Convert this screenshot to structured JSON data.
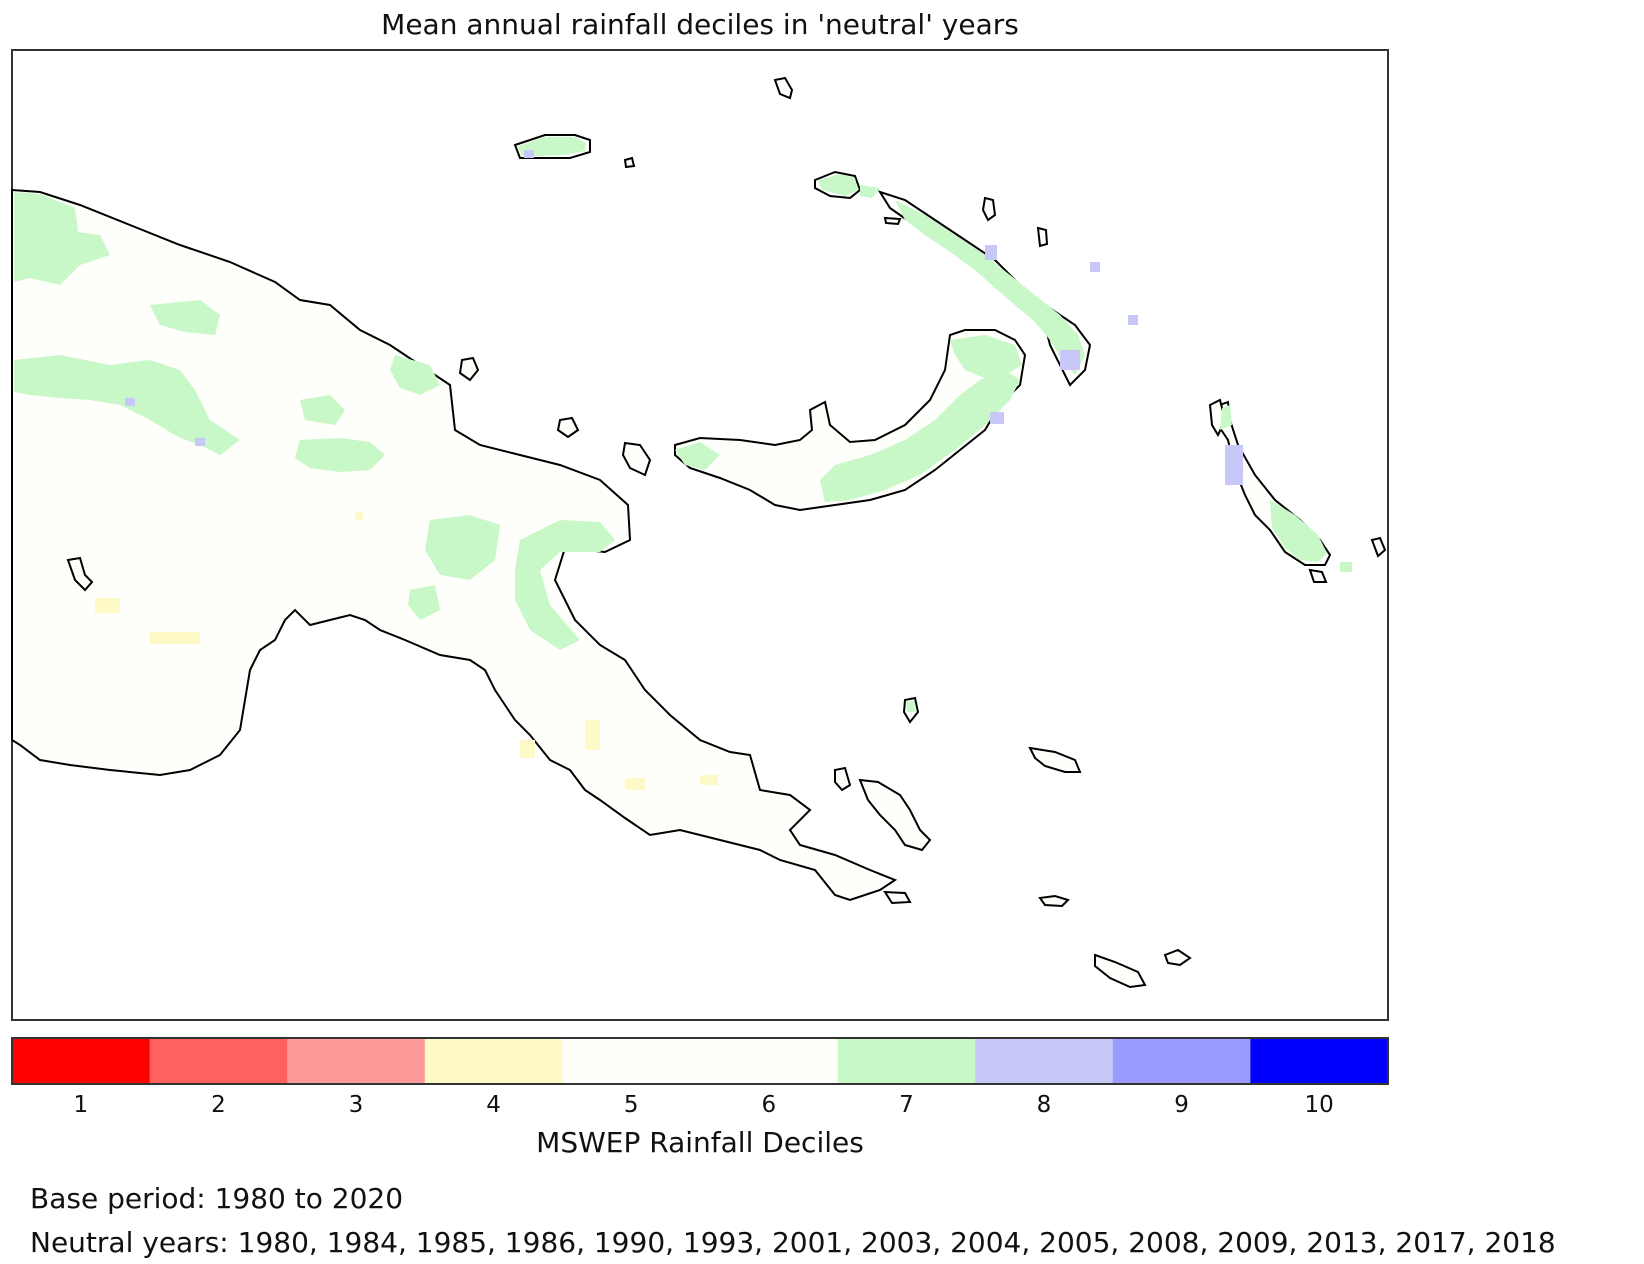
{
  "title": "Mean annual rainfall deciles in 'neutral' years",
  "colorbar": {
    "label": "MSWEP Rainfall Deciles",
    "classes": [
      {
        "label": "1",
        "color": "#ff0000"
      },
      {
        "label": "2",
        "color": "#ff6060"
      },
      {
        "label": "3",
        "color": "#ff9a9a"
      },
      {
        "label": "4",
        "color": "#fefac8"
      },
      {
        "label": "5",
        "color": "#fefefa"
      },
      {
        "label": "6",
        "color": "#fefefa"
      },
      {
        "label": "7",
        "color": "#c8f8c8"
      },
      {
        "label": "8",
        "color": "#c8c8f8"
      },
      {
        "label": "9",
        "color": "#9a9aff"
      },
      {
        "label": "10",
        "color": "#0000ff"
      }
    ]
  },
  "base_period": "Base period: 1980 to 2020",
  "neutral_years": "Neutral years: 1980, 1984, 1985, 1986, 1990, 1993, 2001, 2003, 2004, 2005, 2008, 2009, 2013, 2017, 2018",
  "colors": {
    "coastline": "#000000",
    "land_default": "#fefefa",
    "frame": "#333333"
  }
}
